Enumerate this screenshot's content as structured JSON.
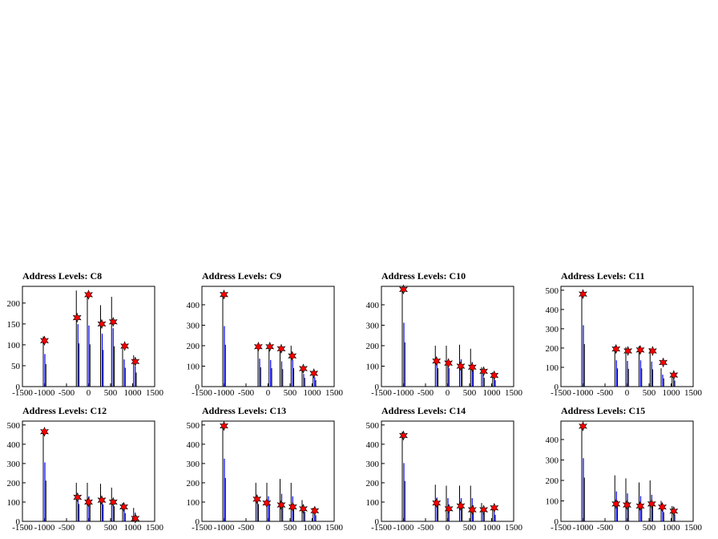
{
  "chart_data": [
    {
      "type": "line",
      "title": "Address Levels: C8",
      "xlim": [
        -1500,
        1500
      ],
      "ylim": [
        0,
        240
      ],
      "xticks": [
        -1500,
        -1000,
        -500,
        0,
        500,
        1000,
        1500
      ],
      "yticks": [
        0,
        50,
        100,
        150,
        200
      ],
      "bars": [
        {
          "x": -1000,
          "h": 120
        },
        {
          "x": -250,
          "h": 230
        },
        {
          "x": 0,
          "h": 225
        },
        {
          "x": 300,
          "h": 195
        },
        {
          "x": 550,
          "h": 215
        },
        {
          "x": 800,
          "h": 100
        },
        {
          "x": 1050,
          "h": 75
        }
      ],
      "markers": [
        {
          "x": -1000,
          "y": 110
        },
        {
          "x": -260,
          "y": 165
        },
        {
          "x": 0,
          "y": 220
        },
        {
          "x": 300,
          "y": 150
        },
        {
          "x": 560,
          "y": 155
        },
        {
          "x": 820,
          "y": 97
        },
        {
          "x": 1060,
          "y": 60
        }
      ]
    },
    {
      "type": "line",
      "title": "Address Levels: C9",
      "xlim": [
        -1500,
        1500
      ],
      "ylim": [
        0,
        490
      ],
      "xticks": [
        -1500,
        -1000,
        -500,
        0,
        500,
        1000,
        1500
      ],
      "yticks": [
        0,
        100,
        200,
        300,
        400
      ],
      "bars": [
        {
          "x": -1000,
          "h": 455
        },
        {
          "x": -200,
          "h": 210
        },
        {
          "x": 50,
          "h": 200
        },
        {
          "x": 300,
          "h": 190
        },
        {
          "x": 550,
          "h": 200
        },
        {
          "x": 800,
          "h": 95
        },
        {
          "x": 1050,
          "h": 70
        }
      ],
      "markers": [
        {
          "x": -1000,
          "y": 450
        },
        {
          "x": -220,
          "y": 195
        },
        {
          "x": 40,
          "y": 195
        },
        {
          "x": 300,
          "y": 185
        },
        {
          "x": 550,
          "y": 150
        },
        {
          "x": 800,
          "y": 88
        },
        {
          "x": 1040,
          "y": 65
        }
      ]
    },
    {
      "type": "line",
      "title": "Address Levels: C10",
      "xlim": [
        -1500,
        1500
      ],
      "ylim": [
        0,
        490
      ],
      "xticks": [
        -1500,
        -1000,
        -500,
        0,
        500,
        1000,
        1500
      ],
      "yticks": [
        0,
        100,
        200,
        300,
        400
      ],
      "bars": [
        {
          "x": -1000,
          "h": 480
        },
        {
          "x": -250,
          "h": 200
        },
        {
          "x": 0,
          "h": 200
        },
        {
          "x": 300,
          "h": 205
        },
        {
          "x": 550,
          "h": 185
        },
        {
          "x": 800,
          "h": 95
        },
        {
          "x": 1050,
          "h": 70
        }
      ],
      "markers": [
        {
          "x": -1000,
          "y": 475
        },
        {
          "x": -250,
          "y": 125
        },
        {
          "x": 20,
          "y": 115
        },
        {
          "x": 300,
          "y": 100
        },
        {
          "x": 560,
          "y": 95
        },
        {
          "x": 820,
          "y": 75
        },
        {
          "x": 1060,
          "y": 55
        }
      ]
    },
    {
      "type": "line",
      "title": "Address Levels: C11",
      "xlim": [
        -1500,
        1500
      ],
      "ylim": [
        0,
        520
      ],
      "xticks": [
        -1500,
        -1000,
        -500,
        0,
        500,
        1000,
        1500
      ],
      "yticks": [
        0,
        100,
        200,
        300,
        400,
        500
      ],
      "bars": [
        {
          "x": -1000,
          "h": 490
        },
        {
          "x": -250,
          "h": 210
        },
        {
          "x": 0,
          "h": 205
        },
        {
          "x": 300,
          "h": 210
        },
        {
          "x": 550,
          "h": 200
        },
        {
          "x": 800,
          "h": 95
        },
        {
          "x": 1050,
          "h": 70
        }
      ],
      "markers": [
        {
          "x": -1000,
          "y": 480
        },
        {
          "x": -250,
          "y": 195
        },
        {
          "x": 20,
          "y": 185
        },
        {
          "x": 300,
          "y": 190
        },
        {
          "x": 580,
          "y": 185
        },
        {
          "x": 820,
          "y": 125
        },
        {
          "x": 1060,
          "y": 60
        }
      ]
    },
    {
      "type": "line",
      "title": "Address Levels: C12",
      "xlim": [
        -1500,
        1500
      ],
      "ylim": [
        0,
        520
      ],
      "xticks": [
        -1500,
        -1000,
        -500,
        0,
        500,
        1000,
        1500
      ],
      "yticks": [
        0,
        100,
        200,
        300,
        400,
        500
      ],
      "bars": [
        {
          "x": -1000,
          "h": 470
        },
        {
          "x": -250,
          "h": 200
        },
        {
          "x": 0,
          "h": 200
        },
        {
          "x": 300,
          "h": 195
        },
        {
          "x": 550,
          "h": 175
        },
        {
          "x": 800,
          "h": 95
        },
        {
          "x": 1050,
          "h": 70
        }
      ],
      "markers": [
        {
          "x": -1000,
          "y": 465
        },
        {
          "x": -250,
          "y": 125
        },
        {
          "x": 0,
          "y": 100
        },
        {
          "x": 300,
          "y": 110
        },
        {
          "x": 560,
          "y": 100
        },
        {
          "x": 800,
          "y": 75
        },
        {
          "x": 1060,
          "y": 15
        }
      ]
    },
    {
      "type": "line",
      "title": "Address Levels: C13",
      "xlim": [
        -1500,
        1500
      ],
      "ylim": [
        0,
        520
      ],
      "xticks": [
        -1500,
        -1000,
        -500,
        0,
        500,
        1000,
        1500
      ],
      "yticks": [
        0,
        100,
        200,
        300,
        400,
        500
      ],
      "bars": [
        {
          "x": -1000,
          "h": 500
        },
        {
          "x": -250,
          "h": 200
        },
        {
          "x": 0,
          "h": 200
        },
        {
          "x": 300,
          "h": 220
        },
        {
          "x": 550,
          "h": 200
        },
        {
          "x": 800,
          "h": 110
        },
        {
          "x": 1050,
          "h": 70
        }
      ],
      "markers": [
        {
          "x": -1000,
          "y": 495
        },
        {
          "x": -250,
          "y": 115
        },
        {
          "x": -30,
          "y": 95
        },
        {
          "x": 300,
          "y": 85
        },
        {
          "x": 560,
          "y": 75
        },
        {
          "x": 800,
          "y": 65
        },
        {
          "x": 1060,
          "y": 55
        }
      ]
    },
    {
      "type": "line",
      "title": "Address Levels: C14",
      "xlim": [
        -1500,
        1500
      ],
      "ylim": [
        0,
        520
      ],
      "xticks": [
        -1500,
        -1000,
        -500,
        0,
        500,
        1000,
        1500
      ],
      "yticks": [
        0,
        100,
        200,
        300,
        400,
        500
      ],
      "bars": [
        {
          "x": -1000,
          "h": 465
        },
        {
          "x": -250,
          "h": 190
        },
        {
          "x": 0,
          "h": 185
        },
        {
          "x": 300,
          "h": 185
        },
        {
          "x": 550,
          "h": 185
        },
        {
          "x": 800,
          "h": 95
        },
        {
          "x": 1050,
          "h": 75
        }
      ],
      "markers": [
        {
          "x": -1000,
          "y": 445
        },
        {
          "x": -250,
          "y": 95
        },
        {
          "x": 30,
          "y": 65
        },
        {
          "x": 300,
          "y": 80
        },
        {
          "x": 560,
          "y": 60
        },
        {
          "x": 820,
          "y": 60
        },
        {
          "x": 1060,
          "y": 70
        }
      ]
    },
    {
      "type": "line",
      "title": "Address Levels: C15",
      "xlim": [
        -1500,
        1500
      ],
      "ylim": [
        0,
        490
      ],
      "xticks": [
        -1500,
        -1000,
        -500,
        0,
        500,
        1000,
        1500
      ],
      "yticks": [
        0,
        100,
        200,
        300,
        400
      ],
      "bars": [
        {
          "x": -1000,
          "h": 475
        },
        {
          "x": -250,
          "h": 225
        },
        {
          "x": 0,
          "h": 210
        },
        {
          "x": 300,
          "h": 190
        },
        {
          "x": 550,
          "h": 200
        },
        {
          "x": 800,
          "h": 100
        },
        {
          "x": 1050,
          "h": 75
        }
      ],
      "markers": [
        {
          "x": -1000,
          "y": 465
        },
        {
          "x": -250,
          "y": 85
        },
        {
          "x": 0,
          "y": 80
        },
        {
          "x": 300,
          "y": 75
        },
        {
          "x": 560,
          "y": 85
        },
        {
          "x": 800,
          "y": 70
        },
        {
          "x": 1060,
          "y": 50
        }
      ]
    }
  ]
}
